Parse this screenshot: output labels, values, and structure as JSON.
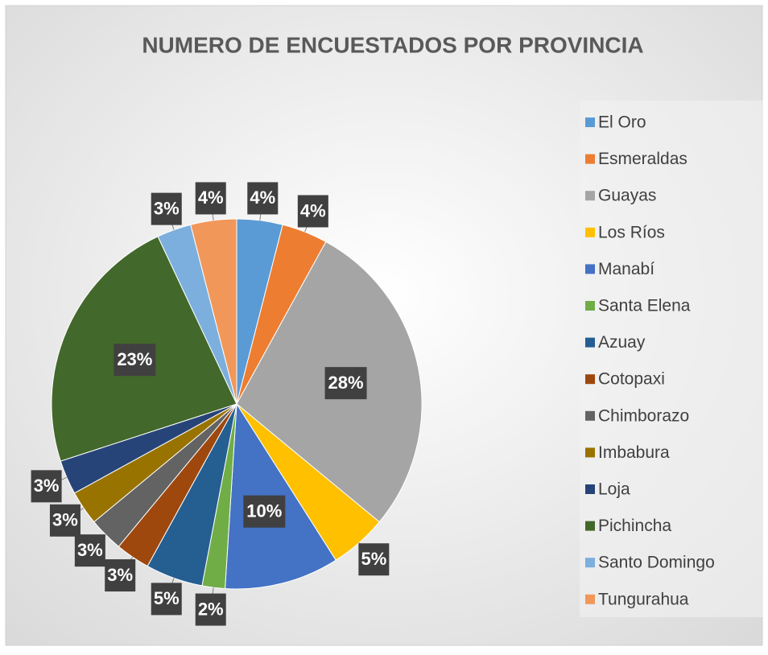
{
  "chart_data": {
    "type": "pie",
    "title": "NUMERO DE ENCUESTADOS POR PROVINCIA",
    "categories": [
      "El Oro",
      "Esmeraldas",
      "Guayas",
      "Los Ríos",
      "Manabí",
      "Santa Elena",
      "Azuay",
      "Cotopaxi",
      "Chimborazo",
      "Imbabura",
      "Loja",
      "Pichincha",
      "Santo Domingo",
      "Tungurahua"
    ],
    "values": [
      4,
      4,
      28,
      5,
      10,
      2,
      5,
      3,
      3,
      3,
      3,
      23,
      3,
      4
    ],
    "value_labels": [
      "4%",
      "4%",
      "28%",
      "5%",
      "10%",
      "2%",
      "5%",
      "3%",
      "3%",
      "3%",
      "3%",
      "23%",
      "3%",
      "4%"
    ],
    "colors": [
      "#5b9bd5",
      "#ed7d31",
      "#a5a5a5",
      "#ffc000",
      "#4472c4",
      "#70ad47",
      "#255e91",
      "#9e480e",
      "#636363",
      "#997300",
      "#264478",
      "#43682b",
      "#7cafdd",
      "#f1975a"
    ],
    "legend": "right"
  }
}
